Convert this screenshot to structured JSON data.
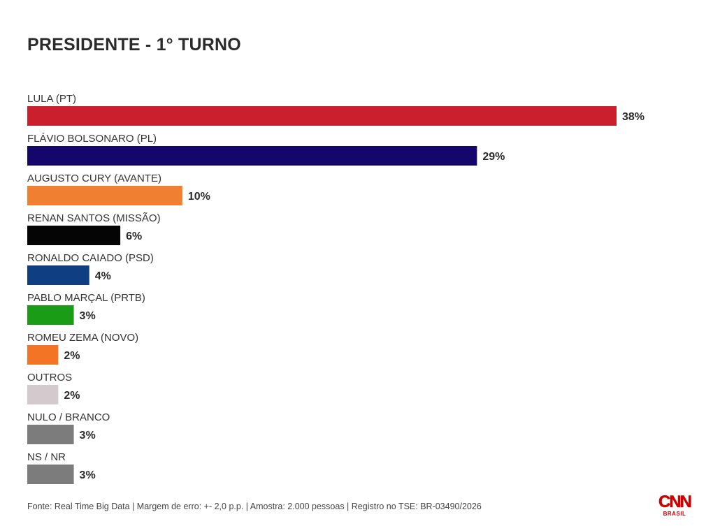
{
  "chart_data": {
    "type": "bar",
    "orientation": "horizontal",
    "title": "PRESIDENTE - 1° TURNO",
    "categories": [
      "LULA (PT)",
      "FLÁVIO BOLSONARO (PL)",
      "AUGUSTO CURY (AVANTE)",
      "RENAN SANTOS (MISSÃO)",
      "RONALDO CAIADO (PSD)",
      "PABLO MARÇAL (PRTB)",
      "ROMEU ZEMA (NOVO)",
      "OUTROS",
      "NULO / BRANCO",
      "NS / NR"
    ],
    "values": [
      38,
      29,
      10,
      6,
      4,
      3,
      2,
      2,
      3,
      3
    ],
    "value_labels": [
      "38%",
      "29%",
      "10%",
      "6%",
      "4%",
      "3%",
      "2%",
      "2%",
      "3%",
      "3%"
    ],
    "colors": [
      "#cc1f2d",
      "#15066b",
      "#f07f32",
      "#050505",
      "#0f3e82",
      "#1a9c16",
      "#f27424",
      "#d4c9cc",
      "#7c7c7c",
      "#7c7c7c"
    ],
    "xlim": [
      0,
      38
    ],
    "grid": false,
    "legend": "none"
  },
  "footer": {
    "source": "Fonte: Real Time Big Data | Margem de erro: +- 2,0 p.p. | Amostra: 2.000 pessoas | Registro no TSE: BR-03490/2026"
  },
  "logo": {
    "mark": "CNN",
    "sub": "BRASIL",
    "color": "#cc0000"
  }
}
